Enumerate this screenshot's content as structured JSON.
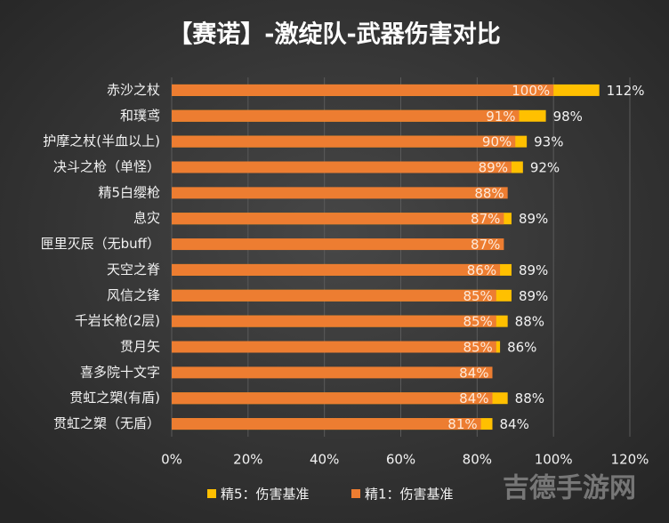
{
  "chart_data": {
    "type": "overlap_bar_horizontal",
    "title": "【赛诺】-激绽队-武器伤害对比",
    "categories": [
      "赤沙之杖",
      "和璞鸢",
      "护摩之杖(半血以上)",
      "决斗之枪（单怪）",
      "精5白缨枪",
      "息灾",
      "匣里灭辰（无buff）",
      "天空之脊",
      "风信之锋",
      "千岩长枪(2层)",
      "贯月矢",
      "喜多院十文字",
      "贯虹之槊(有盾)",
      "贯虹之槊（无盾）"
    ],
    "series": [
      {
        "name": "精5：伤害基准",
        "color": "#ffc000",
        "values": [
          112,
          98,
          93,
          92,
          null,
          89,
          null,
          89,
          89,
          88,
          86,
          null,
          88,
          84
        ],
        "value_labels": [
          "112%",
          "98%",
          "93%",
          "92%",
          null,
          "89%",
          null,
          "89%",
          "89%",
          "88%",
          "86%",
          null,
          "88%",
          "84%"
        ]
      },
      {
        "name": "精1：伤害基准",
        "color": "#ed7d31",
        "values": [
          100,
          91,
          90,
          89,
          88,
          87,
          87,
          86,
          85,
          85,
          85,
          84,
          84,
          81
        ],
        "value_labels": [
          "100%",
          "91%",
          "90%",
          "89%",
          "88%",
          "87%",
          "87%",
          "86%",
          "85%",
          "85%",
          "85%",
          "84%",
          "84%",
          "81%"
        ]
      }
    ],
    "xlim": [
      0,
      120
    ],
    "xticks": [
      {
        "value": 0,
        "label": "0%"
      },
      {
        "value": 20,
        "label": "20%"
      },
      {
        "value": 40,
        "label": "40%"
      },
      {
        "value": 60,
        "label": "60%"
      },
      {
        "value": 80,
        "label": "80%"
      },
      {
        "value": 100,
        "label": "100%"
      },
      {
        "value": 120,
        "label": "120%"
      }
    ],
    "grid": true,
    "legend": "bottom",
    "watermark": "吉德手游网"
  }
}
